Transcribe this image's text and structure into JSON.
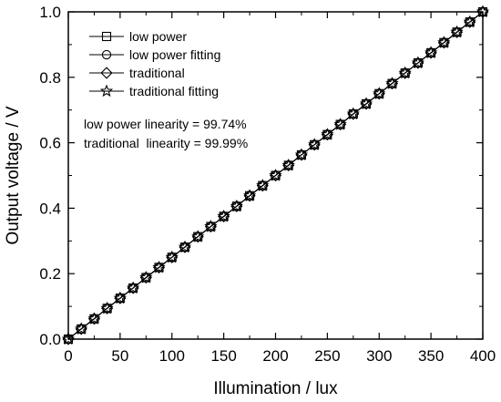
{
  "chart_data": {
    "type": "line",
    "title": "",
    "xlabel": "Illumination / lux",
    "ylabel": "Output voltage / V",
    "xlim": [
      0,
      400
    ],
    "ylim": [
      0.0,
      1.0
    ],
    "xticks": [
      0,
      50,
      100,
      150,
      200,
      250,
      300,
      350,
      400
    ],
    "yticks": [
      0.0,
      0.2,
      0.4,
      0.6,
      0.8,
      1.0
    ],
    "xtick_labels": [
      "0",
      "50",
      "100",
      "150",
      "200",
      "250",
      "300",
      "350",
      "400"
    ],
    "ytick_labels": [
      "0.0",
      "0.2",
      "0.4",
      "0.6",
      "0.8",
      "1.0"
    ],
    "grid": false,
    "legend_position": "top-left",
    "x": [
      0,
      12.5,
      25,
      37.5,
      50,
      62.5,
      75,
      87.5,
      100,
      112.5,
      125,
      137.5,
      150,
      162.5,
      175,
      187.5,
      200,
      212.5,
      225,
      237.5,
      250,
      262.5,
      275,
      287.5,
      300,
      312.5,
      325,
      337.5,
      350,
      362.5,
      375,
      387.5,
      400
    ],
    "series": [
      {
        "name": "low power",
        "marker": "square",
        "values": [
          0.0,
          0.031,
          0.062,
          0.094,
          0.125,
          0.156,
          0.188,
          0.219,
          0.25,
          0.281,
          0.313,
          0.344,
          0.375,
          0.406,
          0.438,
          0.469,
          0.5,
          0.531,
          0.563,
          0.594,
          0.625,
          0.656,
          0.688,
          0.719,
          0.75,
          0.781,
          0.813,
          0.844,
          0.875,
          0.906,
          0.938,
          0.969,
          1.0
        ]
      },
      {
        "name": "low power fitting",
        "marker": "circle",
        "values": [
          0.0,
          0.031,
          0.062,
          0.094,
          0.125,
          0.156,
          0.188,
          0.219,
          0.25,
          0.281,
          0.313,
          0.344,
          0.375,
          0.406,
          0.438,
          0.469,
          0.5,
          0.531,
          0.563,
          0.594,
          0.625,
          0.656,
          0.688,
          0.719,
          0.75,
          0.781,
          0.813,
          0.844,
          0.875,
          0.906,
          0.938,
          0.969,
          1.0
        ]
      },
      {
        "name": "traditional",
        "marker": "diamond",
        "values": [
          0.0,
          0.031,
          0.062,
          0.094,
          0.125,
          0.156,
          0.188,
          0.219,
          0.25,
          0.281,
          0.313,
          0.344,
          0.375,
          0.406,
          0.438,
          0.469,
          0.5,
          0.531,
          0.563,
          0.594,
          0.625,
          0.656,
          0.688,
          0.719,
          0.75,
          0.781,
          0.813,
          0.844,
          0.875,
          0.906,
          0.938,
          0.969,
          1.0
        ]
      },
      {
        "name": "traditional fitting",
        "marker": "star",
        "values": [
          0.0,
          0.031,
          0.062,
          0.094,
          0.125,
          0.156,
          0.188,
          0.219,
          0.25,
          0.281,
          0.313,
          0.344,
          0.375,
          0.406,
          0.438,
          0.469,
          0.5,
          0.531,
          0.563,
          0.594,
          0.625,
          0.656,
          0.688,
          0.719,
          0.75,
          0.781,
          0.813,
          0.844,
          0.875,
          0.906,
          0.938,
          0.969,
          1.0
        ]
      }
    ],
    "annotations": [
      "low power linearity = 99.74%",
      "traditional  linearity = 99.99%"
    ]
  }
}
